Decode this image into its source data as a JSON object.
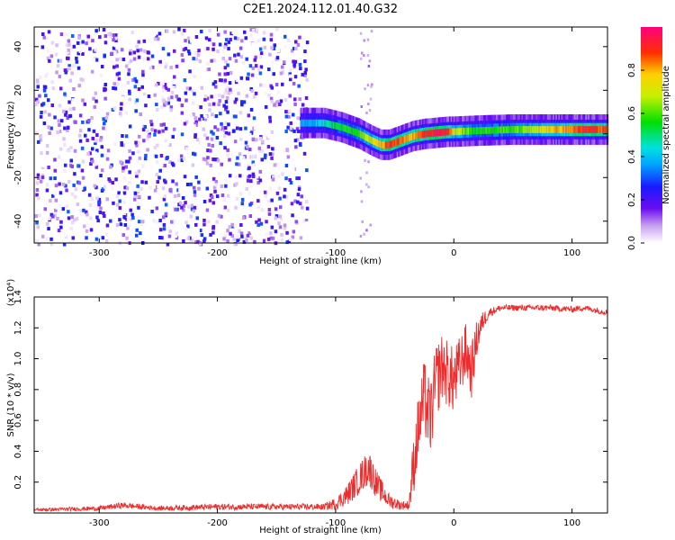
{
  "title": "C2E1.2024.112.01.40.G32",
  "colors": {
    "snr_line": "#ef2b2b",
    "axis": "#000000"
  },
  "chart_data": [
    {
      "type": "heatmap",
      "xlabel": "Height of straight line (km)",
      "ylabel": "Frequency (Hz)",
      "xlim": [
        -355,
        130
      ],
      "ylim": [
        -50,
        49
      ],
      "xticks": [
        -300,
        -200,
        -100,
        0,
        100
      ],
      "xtick_labels": [
        "-300",
        "-200",
        "-100",
        "0",
        "100"
      ],
      "yticks": [
        -40,
        -20,
        0,
        20,
        40
      ],
      "ytick_labels": [
        "-40",
        "-20",
        "0",
        "20",
        "40"
      ],
      "colorbar": {
        "label": "Normalized spectral amplitude",
        "range": [
          0,
          1
        ],
        "ticks": [
          0.0,
          0.2,
          0.4,
          0.6,
          0.8
        ],
        "tick_labels": [
          "0.0",
          "0.2",
          "0.4",
          "0.6",
          "0.8"
        ],
        "colormap": "rainbow"
      },
      "ridge": {
        "x": [
          -130,
          -110,
          -95,
          -80,
          -70,
          -62,
          -55,
          -45,
          -35,
          -25,
          -15,
          -5,
          0,
          20,
          50,
          80,
          110,
          130
        ],
        "y": [
          5,
          5,
          3,
          0,
          -3,
          -5,
          -5,
          -3,
          -1,
          0,
          0.5,
          1,
          1,
          1.5,
          2,
          2,
          2,
          2
        ],
        "amplitude": [
          0.35,
          0.45,
          0.55,
          0.6,
          0.7,
          0.8,
          0.9,
          0.85,
          0.8,
          0.9,
          0.95,
          0.9,
          0.7,
          0.55,
          0.6,
          0.75,
          0.9,
          0.85
        ]
      },
      "noise_region": {
        "x_range": [
          -355,
          -125
        ],
        "y_range": [
          -50,
          49
        ]
      }
    },
    {
      "type": "line",
      "xlabel": "Height of straight line (km)",
      "ylabel": "SNR (10 * v/v)",
      "y_multiplier": "(x10⁴)",
      "xlim": [
        -355,
        130
      ],
      "ylim": [
        0,
        1.4
      ],
      "xticks": [
        -300,
        -200,
        -100,
        0,
        100
      ],
      "xtick_labels": [
        "-300",
        "-200",
        "-100",
        "0",
        "100"
      ],
      "yticks": [
        0.2,
        0.4,
        0.6,
        0.8,
        1.0,
        1.2,
        1.4
      ],
      "ytick_labels": [
        "0.2",
        "0.4",
        "0.6",
        "0.8",
        "1.0",
        "1.2",
        "1.4"
      ],
      "series": [
        {
          "x": [
            -355,
            -300,
            -280,
            -250,
            -200,
            -150,
            -110,
            -100,
            -90,
            -80,
            -72,
            -65,
            -55,
            -45,
            -40,
            -38,
            -35,
            -30,
            -25,
            -20,
            -15,
            -10,
            -5,
            0,
            5,
            10,
            15,
            20,
            25,
            30,
            40,
            60,
            80,
            100,
            110,
            130
          ],
          "y": [
            0.02,
            0.03,
            0.05,
            0.03,
            0.04,
            0.04,
            0.04,
            0.06,
            0.12,
            0.22,
            0.3,
            0.18,
            0.08,
            0.05,
            0.05,
            0.05,
            0.25,
            0.55,
            0.75,
            0.6,
            0.85,
            0.95,
            0.9,
            0.85,
            0.95,
            1.05,
            0.92,
            1.15,
            1.25,
            1.3,
            1.33,
            1.33,
            1.33,
            1.32,
            1.33,
            1.3
          ],
          "noise": [
            0.01,
            0.015,
            0.02,
            0.015,
            0.02,
            0.02,
            0.02,
            0.04,
            0.07,
            0.1,
            0.12,
            0.09,
            0.05,
            0.03,
            0.03,
            0.03,
            0.18,
            0.22,
            0.25,
            0.25,
            0.25,
            0.22,
            0.22,
            0.22,
            0.2,
            0.18,
            0.18,
            0.12,
            0.06,
            0.03,
            0.02,
            0.02,
            0.02,
            0.02,
            0.02,
            0.02
          ]
        }
      ]
    }
  ]
}
